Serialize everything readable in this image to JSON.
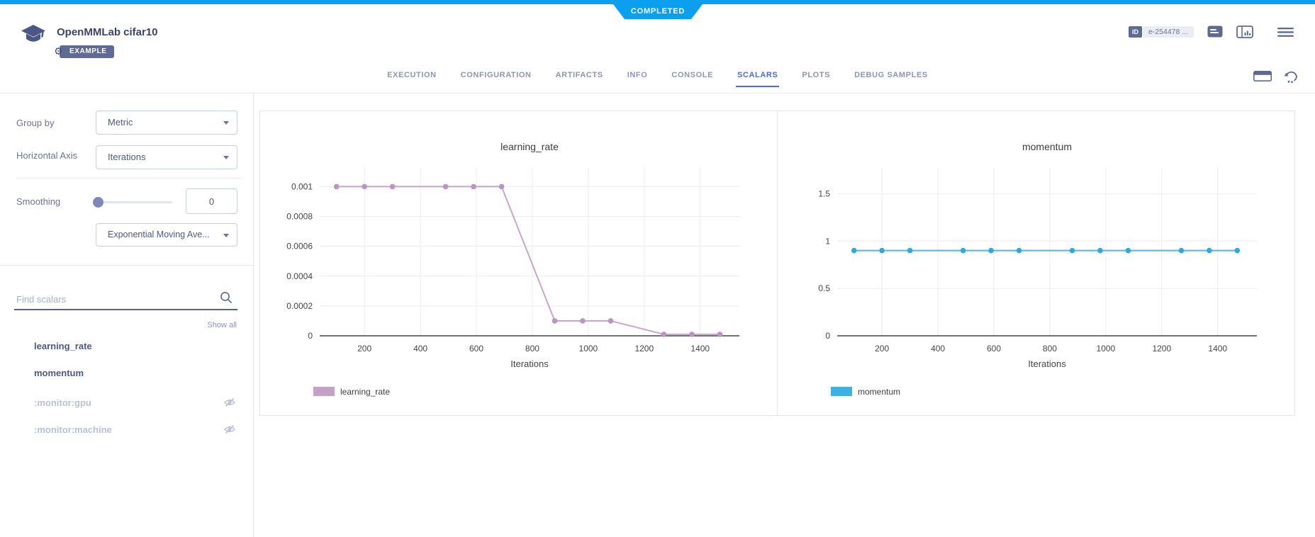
{
  "status_banner": {
    "label": "COMPLETED",
    "color": "#0b9ff0"
  },
  "header": {
    "title": "OpenMMLab cifar10",
    "example_badge": "EXAMPLE",
    "id_chip": "ID",
    "id_value": "e-254478 ...",
    "logo_icon": "mortarboard-icon",
    "action_icons": [
      "details-icon",
      "panel-chart-icon",
      "menu-icon"
    ]
  },
  "tabs": {
    "active_color": "#4a6ce1",
    "items": [
      {
        "label": "EXECUTION",
        "active": false
      },
      {
        "label": "CONFIGURATION",
        "active": false
      },
      {
        "label": "ARTIFACTS",
        "active": false
      },
      {
        "label": "INFO",
        "active": false
      },
      {
        "label": "CONSOLE",
        "active": false
      },
      {
        "label": "SCALARS",
        "active": true
      },
      {
        "label": "PLOTS",
        "active": false
      },
      {
        "label": "DEBUG SAMPLES",
        "active": false
      }
    ],
    "right_icons": [
      "table-view-icon",
      "auto-refresh-icon"
    ]
  },
  "sidebar": {
    "group_by_label": "Group by",
    "group_by_value": "Metric",
    "horizontal_axis_label": "Horizontal Axis",
    "horizontal_axis_value": "Iterations",
    "smoothing_label": "Smoothing",
    "smoothing_value": "0",
    "smoothing_type_value": "Exponential Moving Ave...",
    "search_placeholder": "Find scalars",
    "show_all_label": "Show all",
    "scalars": [
      {
        "label": "learning_rate",
        "hidden": false
      },
      {
        "label": "momentum",
        "hidden": false
      },
      {
        "label": ":monitor:gpu",
        "hidden": true
      },
      {
        "label": ":monitor:machine",
        "hidden": true
      }
    ]
  },
  "chart_data": [
    {
      "type": "line",
      "title": "learning_rate",
      "xlabel": "Iterations",
      "series_name": "learning_rate",
      "x": [
        100,
        200,
        300,
        490,
        590,
        690,
        880,
        980,
        1080,
        1270,
        1370,
        1470
      ],
      "y": [
        0.001,
        0.001,
        0.001,
        0.001,
        0.001,
        0.001,
        0.0001,
        0.0001,
        0.0001,
        1e-05,
        1e-05,
        1e-05
      ],
      "line_color": "#c9a5cb",
      "marker_color": "#bb93c4",
      "swatch_color": "#c5a0c8",
      "xticks": [
        200,
        400,
        600,
        800,
        1000,
        1200,
        1400
      ],
      "yticks": [
        0,
        0.0002,
        0.0004,
        0.0006,
        0.0008,
        0.001
      ],
      "ytick_labels": [
        "0",
        "0.0002",
        "0.0004",
        "0.0006",
        "0.0008",
        "0.001"
      ],
      "xlim": [
        40,
        1540
      ],
      "ylim": [
        0,
        0.00113
      ],
      "grid": true,
      "legend_position": "bottom-left"
    },
    {
      "type": "line",
      "title": "momentum",
      "xlabel": "Iterations",
      "series_name": "momentum",
      "x": [
        100,
        200,
        300,
        490,
        590,
        690,
        880,
        980,
        1080,
        1270,
        1370,
        1470
      ],
      "y": [
        0.9,
        0.9,
        0.9,
        0.9,
        0.9,
        0.9,
        0.9,
        0.9,
        0.9,
        0.9,
        0.9,
        0.9
      ],
      "line_color": "#4ab8e8",
      "marker_color": "#2fa8dd",
      "swatch_color": "#3eb1e4",
      "xticks": [
        200,
        400,
        600,
        800,
        1000,
        1200,
        1400
      ],
      "yticks": [
        0,
        0.5,
        1,
        1.5
      ],
      "ytick_labels": [
        "0",
        "0.5",
        "1",
        "1.5"
      ],
      "xlim": [
        40,
        1540
      ],
      "ylim": [
        0,
        1.78
      ],
      "grid": true,
      "legend_position": "bottom-left"
    }
  ]
}
